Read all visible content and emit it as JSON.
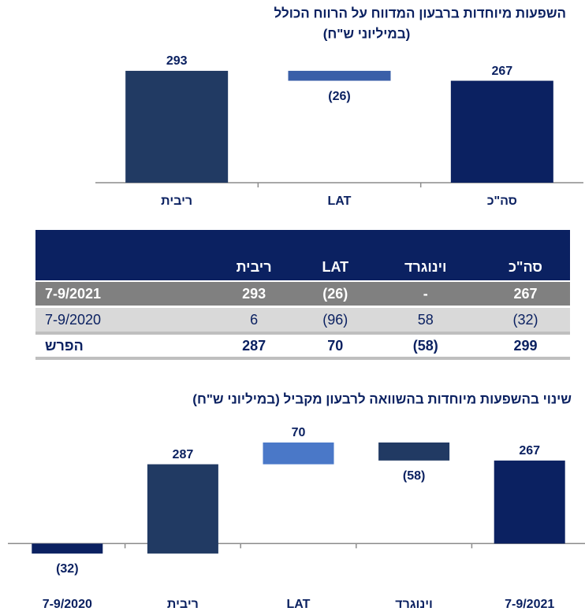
{
  "chart_data": [
    {
      "type": "waterfall",
      "title": "השפעות מיוחדות ברבעון המדווח על הרווח הכולל",
      "subtitle": "(במיליוני ש\"ח)",
      "categories": [
        "ריבית",
        "LAT",
        "סה\"כ"
      ],
      "values": [
        293,
        -26,
        267
      ],
      "value_labels": [
        "293",
        "(26)",
        "267"
      ],
      "colors": [
        "#213a63",
        "#3a5fa8",
        "#0b2161"
      ],
      "ylim": [
        0,
        330
      ]
    },
    {
      "type": "waterfall",
      "title": "שינוי בהשפעות מיוחדות בהשוואה לרבעון מקביל (במיליוני ש\"ח)",
      "categories": [
        "7-9/2020",
        "ריבית",
        "LAT",
        "וינוגרד",
        "7-9/2021"
      ],
      "values": [
        -32,
        287,
        70,
        -58,
        267
      ],
      "value_labels": [
        "(32)",
        "287",
        "70",
        "(58)",
        "267"
      ],
      "colors": [
        "#0b2161",
        "#213a63",
        "#4a78c8",
        "#213a63",
        "#0b2161"
      ],
      "ylim": [
        -60,
        340
      ]
    }
  ],
  "table": {
    "header": [
      "סה\"כ",
      "וינוגרד",
      "LAT",
      "ריבית"
    ],
    "rows": [
      [
        "267",
        "-",
        "(26)",
        "293",
        "7-9/2021"
      ],
      [
        "(32)",
        "58",
        "(96)",
        "6",
        "7-9/2020"
      ],
      [
        "299",
        "(58)",
        "70",
        "287",
        "הפרש"
      ]
    ]
  }
}
